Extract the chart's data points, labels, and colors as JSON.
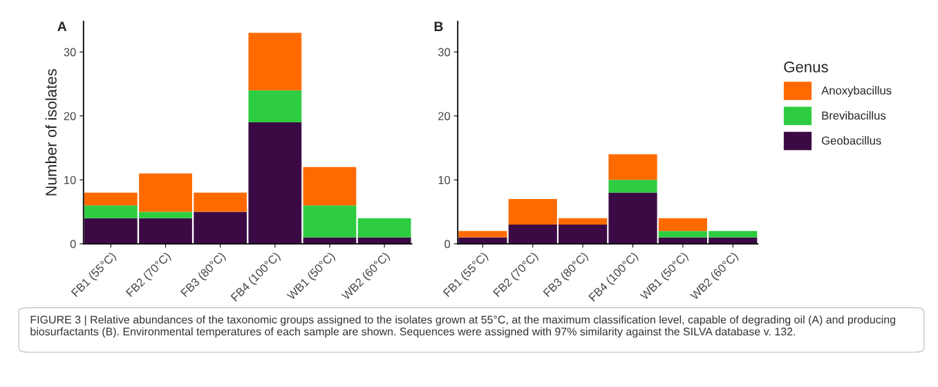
{
  "chart_data": [
    {
      "type": "bar",
      "stacked": true,
      "title": "A",
      "ylabel": "Number of isolates",
      "categories": [
        "FB1 (55°C)",
        "FB2 (70°C)",
        "FB3 (80°C)",
        "FB4 (100°C)",
        "WB1 (50°C)",
        "WB2 (60°C)"
      ],
      "series": [
        {
          "color": "#3b0a45",
          "values": [
            4,
            4,
            5,
            19,
            1,
            1
          ]
        },
        {
          "color": "#2ecc40",
          "values": [
            2,
            1,
            0,
            5,
            5,
            3
          ]
        },
        {
          "color": "#ff6a00",
          "values": [
            2,
            6,
            3,
            9,
            6,
            0
          ]
        }
      ],
      "ylim": [
        0,
        34.8
      ],
      "yticks": [
        0,
        10,
        20,
        30
      ],
      "annotations": [
        "FIGURE 3 | Relative abundances of the taxonomic groups assigned to the isolates grown at 55°C, at the maximum classification level, capable of degrading oil (A) and producing biosurfactants (B). Environmental temperatures of each sample are shown. Sequences were assigned with 97% similarity against the SILVA database v. 132."
      ]
    },
    {
      "type": "bar",
      "stacked": true,
      "title": "B",
      "legend": "right",
      "legend_title": "Genus",
      "categories": [
        "FB1 (55°C)",
        "FB2 (70°C)",
        "FB3 (80°C)",
        "FB4 (100°C)",
        "WB1 (50°C)",
        "WB2 (60°C)"
      ],
      "series": [
        {
          "name": "Geobacillus",
          "color": "#3b0a45",
          "values": [
            1,
            3,
            3,
            8,
            1,
            1
          ]
        },
        {
          "name": "Brevibacillus",
          "color": "#2ecc40",
          "values": [
            0,
            0,
            0,
            2,
            1,
            1
          ]
        },
        {
          "name": "Anoxybacillus",
          "color": "#ff6a00",
          "values": [
            1,
            4,
            1,
            4,
            2,
            0
          ]
        }
      ],
      "ylim": [
        0,
        34.8
      ],
      "yticks": [
        0,
        10,
        20,
        30
      ]
    }
  ]
}
